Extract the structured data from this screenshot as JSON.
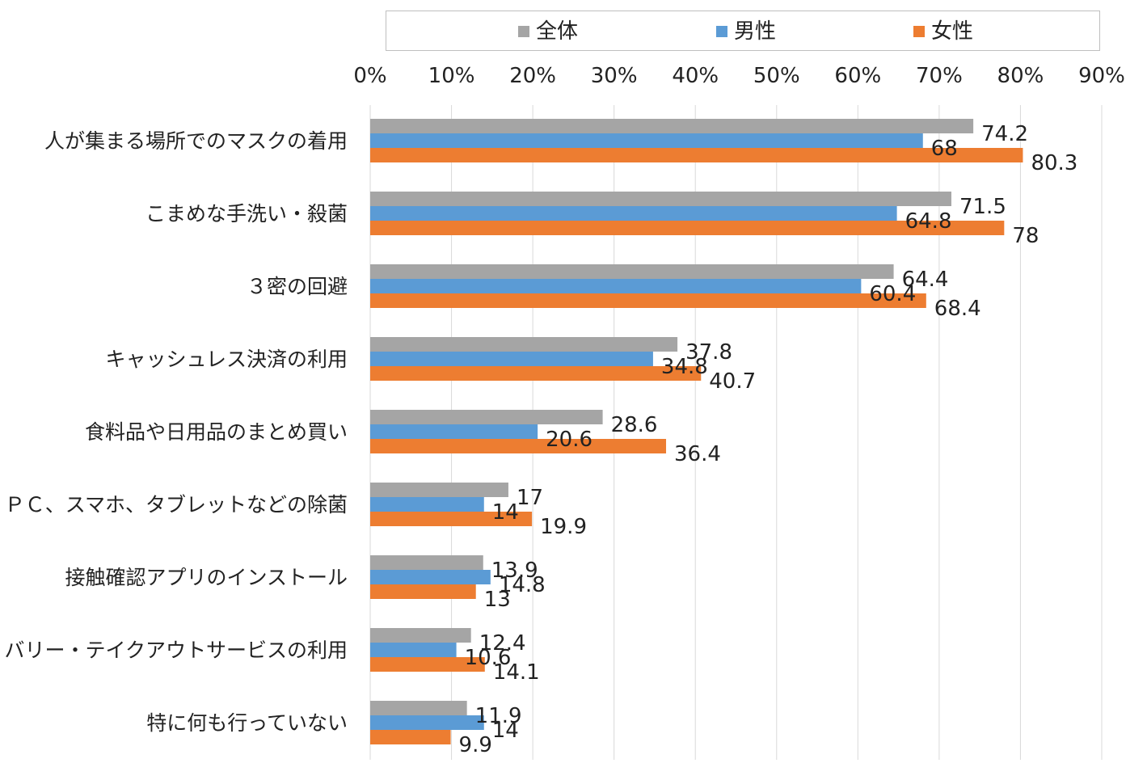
{
  "chart_data": {
    "type": "bar",
    "orientation": "horizontal",
    "categories": [
      "人が集まる場所でのマスクの着用",
      "こまめな手洗い・殺菌",
      "３密の回避",
      "キャッシュレス決済の利用",
      "食料品や日用品のまとめ買い",
      "ＰＣ、スマホ、タブレットなどの除菌",
      "接触確認アプリのインストール",
      "デリバリー・テイクアウトサービスの利用",
      "特に何も行っていない"
    ],
    "series": [
      {
        "name": "全体",
        "color": "#a5a5a5",
        "values": [
          74.2,
          71.5,
          64.4,
          37.8,
          28.6,
          17,
          13.9,
          12.4,
          11.9
        ],
        "labels": [
          "74.2",
          "71.5",
          "64.4",
          "37.8",
          "28.6",
          "17",
          "13.9",
          "12.4",
          "11.9"
        ]
      },
      {
        "name": "男性",
        "color": "#5b9bd5",
        "values": [
          68,
          64.8,
          60.4,
          34.8,
          20.6,
          14,
          14.8,
          10.6,
          14
        ],
        "labels": [
          "68",
          "64.8",
          "60.4",
          "34.8",
          "20.6",
          "14",
          "14.8",
          "10.6",
          "14"
        ]
      },
      {
        "name": "女性",
        "color": "#ed7d31",
        "values": [
          80.3,
          78,
          68.4,
          40.7,
          36.4,
          19.9,
          13,
          14.1,
          9.9
        ],
        "labels": [
          "80.3",
          "78",
          "68.4",
          "40.7",
          "36.4",
          "19.9",
          "13",
          "14.1",
          "9.9"
        ]
      }
    ],
    "xlim": [
      0,
      90
    ],
    "xticks": [
      "0%",
      "10%",
      "20%",
      "30%",
      "40%",
      "50%",
      "60%",
      "70%",
      "80%",
      "90%"
    ],
    "grid": true,
    "legend_position": "top"
  }
}
